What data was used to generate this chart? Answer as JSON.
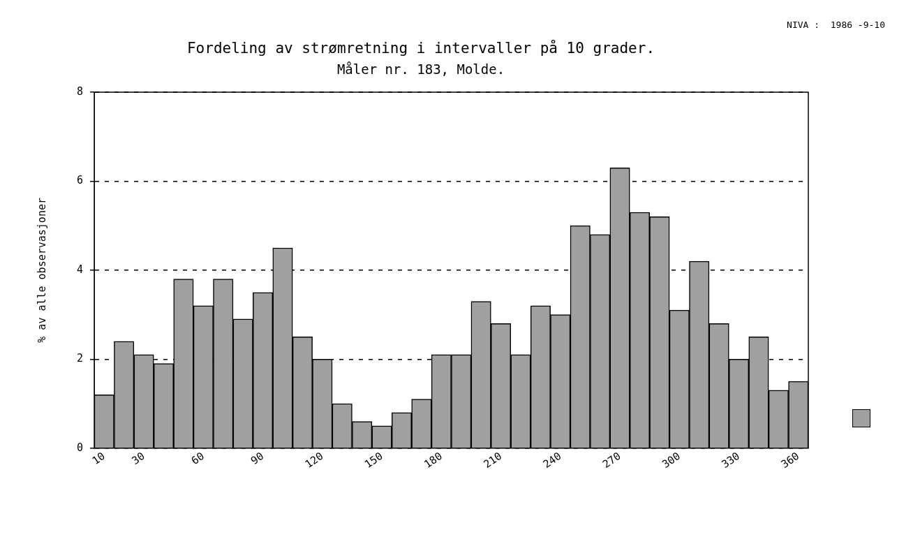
{
  "chart_data": {
    "type": "bar",
    "title": "Fordeling av strømretning i intervaller på 10 grader.",
    "subtitle": "Måler nr. 183, Molde.",
    "ylabel": "% av alle observasjoner",
    "annotations": [
      "NIVA :  1986 -9-10"
    ],
    "categories": [
      "10",
      null,
      "30",
      null,
      null,
      "60",
      null,
      null,
      "90",
      null,
      null,
      "120",
      null,
      null,
      "150",
      null,
      null,
      "180",
      null,
      null,
      "210",
      null,
      null,
      "240",
      null,
      null,
      "270",
      null,
      null,
      "300",
      null,
      null,
      "330",
      null,
      null,
      "360"
    ],
    "values": [
      1.2,
      2.4,
      2.1,
      1.9,
      3.8,
      3.2,
      3.8,
      2.9,
      3.5,
      4.5,
      2.5,
      2.0,
      1.0,
      0.6,
      0.5,
      0.8,
      1.1,
      2.1,
      2.1,
      3.3,
      2.8,
      2.1,
      3.2,
      3.0,
      5.0,
      4.8,
      6.3,
      5.3,
      5.2,
      3.1,
      4.2,
      2.8,
      2.0,
      2.5,
      1.3,
      1.5
    ],
    "color": "#a0a0a0",
    "ylim": [
      0,
      8
    ],
    "yticks": [
      0,
      2,
      4,
      6,
      8
    ],
    "grid": "y",
    "line_style": "dashed"
  }
}
